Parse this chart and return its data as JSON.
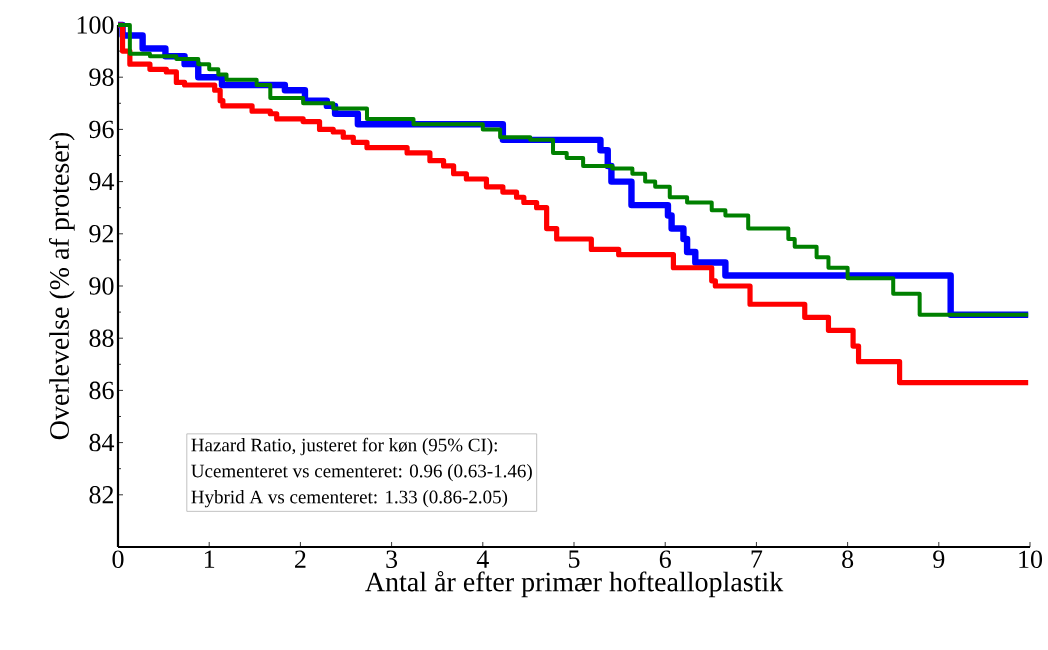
{
  "chart_data": {
    "type": "step",
    "xlabel": "Antal år efter primær hoftealloplastik",
    "ylabel": "Overlevelse (% af proteser)",
    "xlim": [
      0,
      10
    ],
    "ylim": [
      80,
      100
    ],
    "xticks": [
      0,
      1,
      2,
      3,
      4,
      5,
      6,
      7,
      8,
      9,
      10
    ],
    "yticks": [
      82,
      84,
      86,
      88,
      90,
      92,
      94,
      96,
      98,
      100
    ],
    "marker": "none",
    "line_style": "solid",
    "annotations": [
      "Hazard Ratio, justeret for køn (95% CI):",
      "Ucementeret vs cementeret: 0.96 (0.63-1.46)",
      "Hybrid A vs cementeret: 1.33 (0.86-2.05)"
    ],
    "series": [
      {
        "color": "#0000ff",
        "x": [
          0,
          0.05,
          0.27,
          0.52,
          0.73,
          0.88,
          1.14,
          1.83,
          2.05,
          2.29,
          2.38,
          2.63,
          4.22,
          5.29,
          5.37,
          5.41,
          5.63,
          6.03,
          6.07,
          6.2,
          6.24,
          6.33,
          6.66,
          9.13,
          9.98
        ],
        "values": [
          100,
          99.6,
          99.1,
          98.8,
          98.5,
          98.0,
          97.7,
          97.5,
          97.1,
          96.9,
          96.6,
          96.2,
          95.6,
          95.2,
          94.6,
          94.0,
          93.1,
          92.7,
          92.2,
          91.8,
          91.3,
          90.9,
          90.4,
          88.9,
          88.9
        ]
      },
      {
        "color": "#ff0000",
        "x": [
          0,
          0.05,
          0.13,
          0.35,
          0.53,
          0.64,
          0.73,
          1.06,
          1.12,
          1.15,
          1.47,
          1.67,
          1.74,
          2.03,
          2.21,
          2.36,
          2.47,
          2.58,
          2.73,
          3.17,
          3.42,
          3.57,
          3.68,
          3.82,
          4.04,
          4.22,
          4.37,
          4.45,
          4.59,
          4.7,
          4.81,
          5.19,
          5.49,
          6.09,
          6.51,
          6.55,
          6.93,
          7.53,
          7.79,
          8.06,
          8.12,
          8.57,
          9.98
        ],
        "values": [
          100,
          99.0,
          98.5,
          98.3,
          98.2,
          97.8,
          97.7,
          97.5,
          97.1,
          96.9,
          96.7,
          96.6,
          96.4,
          96.3,
          96.0,
          95.9,
          95.7,
          95.5,
          95.3,
          95.1,
          94.8,
          94.6,
          94.3,
          94.1,
          93.8,
          93.6,
          93.4,
          93.2,
          93.0,
          92.2,
          91.8,
          91.4,
          91.2,
          90.7,
          90.2,
          90.0,
          89.3,
          88.8,
          88.3,
          87.7,
          87.1,
          86.3,
          86.3
        ]
      },
      {
        "color": "#008000",
        "x": [
          0,
          0.13,
          0.35,
          0.64,
          0.88,
          1.0,
          1.1,
          1.19,
          1.52,
          1.67,
          2.03,
          2.36,
          2.73,
          3.24,
          4.0,
          4.19,
          4.52,
          4.77,
          4.92,
          5.1,
          5.42,
          5.64,
          5.78,
          5.89,
          6.05,
          6.24,
          6.51,
          6.66,
          6.91,
          7.35,
          7.42,
          7.66,
          7.79,
          8.0,
          8.5,
          8.79,
          9.98
        ],
        "values": [
          100,
          98.9,
          98.8,
          98.7,
          98.5,
          98.3,
          98.1,
          97.9,
          97.7,
          97.2,
          97.0,
          96.8,
          96.4,
          96.2,
          96.0,
          95.7,
          95.6,
          95.1,
          94.9,
          94.6,
          94.5,
          94.3,
          94.0,
          93.8,
          93.4,
          93.2,
          92.9,
          92.7,
          92.2,
          91.8,
          91.5,
          91.1,
          90.7,
          90.3,
          89.7,
          88.9,
          88.9
        ]
      }
    ]
  }
}
